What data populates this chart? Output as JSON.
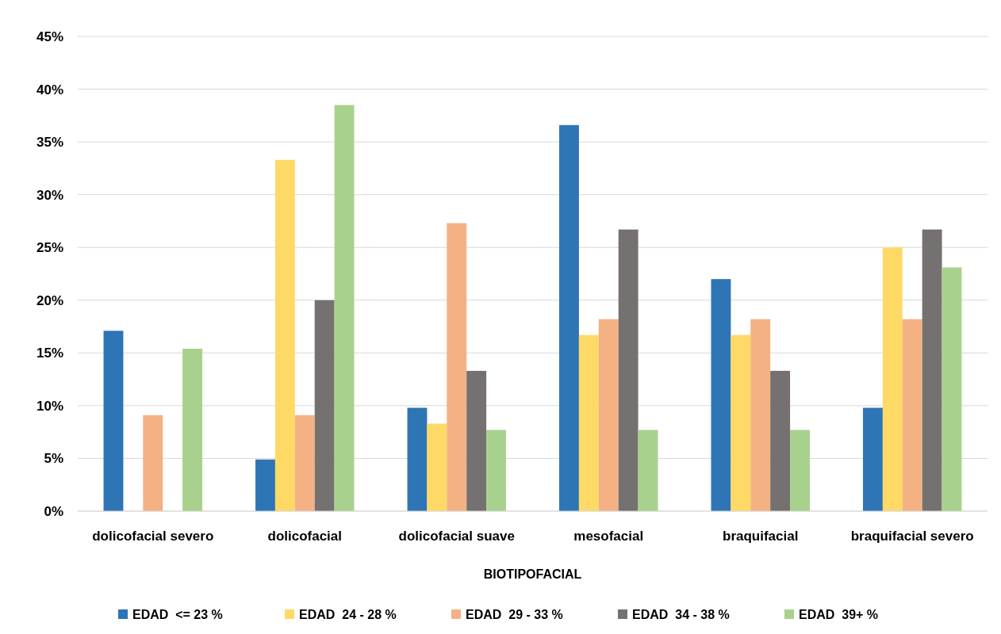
{
  "chart_data": {
    "type": "bar",
    "xlabel": "BIOTIPOFACIAL",
    "categories": [
      "dolicofacial severo",
      "dolicofacial",
      "dolicofacial suave",
      "mesofacial",
      "braquifacial",
      "braquifacial severo"
    ],
    "series": [
      {
        "name": "EDAD  <= 23 %",
        "color": "#2e75b6",
        "values": [
          17.1,
          4.9,
          9.8,
          36.6,
          22.0,
          9.8
        ]
      },
      {
        "name": "EDAD  24 - 28 %",
        "color": "#ffd966",
        "values": [
          0,
          33.3,
          8.3,
          16.7,
          16.7,
          25.0
        ]
      },
      {
        "name": "EDAD  29 - 33 %",
        "color": "#f4b183",
        "values": [
          9.1,
          9.1,
          27.3,
          18.2,
          18.2,
          18.2
        ]
      },
      {
        "name": "EDAD  34 - 38 %",
        "color": "#767171",
        "values": [
          0,
          20.0,
          13.3,
          26.7,
          13.3,
          26.7
        ]
      },
      {
        "name": "EDAD  39+ %",
        "color": "#a9d18e",
        "values": [
          15.4,
          38.5,
          7.7,
          7.7,
          7.7,
          23.1
        ]
      }
    ],
    "ylim": [
      0,
      45
    ],
    "yticks": [
      {
        "value": 0,
        "label": "0%"
      },
      {
        "value": 5,
        "label": "5%"
      },
      {
        "value": 10,
        "label": "10%"
      },
      {
        "value": 15,
        "label": "15%"
      },
      {
        "value": 20,
        "label": "20%"
      },
      {
        "value": 25,
        "label": "25%"
      },
      {
        "value": 30,
        "label": "30%"
      },
      {
        "value": 35,
        "label": "35%"
      },
      {
        "value": 40,
        "label": "40%"
      },
      {
        "value": 45,
        "label": "45%"
      }
    ],
    "grid": "y",
    "legend": "bottom"
  }
}
